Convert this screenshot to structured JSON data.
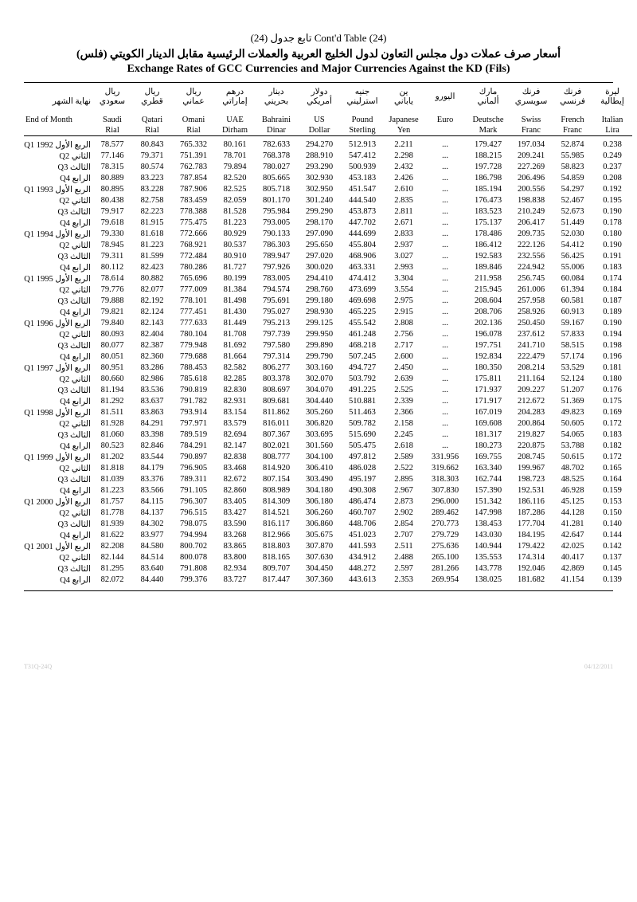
{
  "title": {
    "line1_ar": "تابع جدول (24)",
    "line1_en": "Cont'd Table (24)",
    "line2": "أسعار صرف عملات دول مجلس التعاون لدول الخليج العربية والعملات الرئيسية مقابل الدينار الكويتي (فلس)",
    "line3": "Exchange Rates of GCC Currencies and Major Currencies Against the KD (Fils)"
  },
  "headers": {
    "arabic": [
      "نهاية الشهر",
      "ريال سعودي",
      "ريال قطري",
      "ريال عماني",
      "درهم إماراتي",
      "دينار بحريني",
      "دولار أمريكي",
      "جنيه استرليني",
      "ين ياباني",
      "اليورو",
      "مارك ألماني",
      "فرنك سويسري",
      "فرنك فرنسي",
      "ليرة إيطالية"
    ],
    "en_top": [
      "End of Month",
      "Saudi",
      "Qatari",
      "Omani",
      "UAE",
      "Bahraini",
      "US",
      "Pound",
      "Japanese",
      "Euro",
      "Deutsche",
      "Swiss",
      "French",
      "Italian"
    ],
    "en_bot": [
      "",
      "Rial",
      "Rial",
      "Rial",
      "Dirham",
      "Dinar",
      "Dollar",
      "Sterling",
      "Yen",
      "",
      "Mark",
      "Franc",
      "Franc",
      "Lira"
    ]
  },
  "rows": [
    {
      "l": "الربع الأول Q1 1992",
      "v": [
        "78.577",
        "80.843",
        "765.332",
        "80.161",
        "782.633",
        "294.270",
        "512.913",
        "2.211",
        "...",
        "179.427",
        "197.034",
        "52.874",
        "0.238"
      ]
    },
    {
      "l": "الثاني Q2",
      "v": [
        "77.146",
        "79.371",
        "751.391",
        "78.701",
        "768.378",
        "288.910",
        "547.412",
        "2.298",
        "...",
        "188.215",
        "209.241",
        "55.985",
        "0.249"
      ]
    },
    {
      "l": "الثالث Q3",
      "v": [
        "78.315",
        "80.574",
        "762.783",
        "79.894",
        "780.027",
        "293.290",
        "500.939",
        "2.432",
        "...",
        "197.728",
        "227.269",
        "58.823",
        "0.237"
      ]
    },
    {
      "l": "الرابع Q4",
      "v": [
        "80.889",
        "83.223",
        "787.854",
        "82.520",
        "805.665",
        "302.930",
        "453.183",
        "2.426",
        "...",
        "186.798",
        "206.496",
        "54.859",
        "0.208"
      ]
    },
    {
      "l": "الربع الأول Q1 1993",
      "v": [
        "80.895",
        "83.228",
        "787.906",
        "82.525",
        "805.718",
        "302.950",
        "451.547",
        "2.610",
        "...",
        "185.194",
        "200.556",
        "54.297",
        "0.192"
      ]
    },
    {
      "l": "الثاني Q2",
      "v": [
        "80.438",
        "82.758",
        "783.459",
        "82.059",
        "801.170",
        "301.240",
        "444.540",
        "2.835",
        "...",
        "176.473",
        "198.838",
        "52.467",
        "0.195"
      ]
    },
    {
      "l": "الثالث Q3",
      "v": [
        "79.917",
        "82.223",
        "778.388",
        "81.528",
        "795.984",
        "299.290",
        "453.873",
        "2.811",
        "...",
        "183.523",
        "210.249",
        "52.673",
        "0.190"
      ]
    },
    {
      "l": "الرابع Q4",
      "v": [
        "79.618",
        "81.915",
        "775.475",
        "81.223",
        "793.005",
        "298.170",
        "447.702",
        "2.671",
        "...",
        "175.137",
        "206.417",
        "51.449",
        "0.178"
      ]
    },
    {
      "l": "الربع الأول Q1 1994",
      "v": [
        "79.330",
        "81.618",
        "772.666",
        "80.929",
        "790.133",
        "297.090",
        "444.699",
        "2.833",
        "...",
        "178.486",
        "209.735",
        "52.030",
        "0.180"
      ]
    },
    {
      "l": "الثاني Q2",
      "v": [
        "78.945",
        "81.223",
        "768.921",
        "80.537",
        "786.303",
        "295.650",
        "455.804",
        "2.937",
        "...",
        "186.412",
        "222.126",
        "54.412",
        "0.190"
      ]
    },
    {
      "l": "الثالث Q3",
      "v": [
        "79.311",
        "81.599",
        "772.484",
        "80.910",
        "789.947",
        "297.020",
        "468.906",
        "3.027",
        "...",
        "192.583",
        "232.556",
        "56.425",
        "0.191"
      ]
    },
    {
      "l": "الرابع Q4",
      "v": [
        "80.112",
        "82.423",
        "780.286",
        "81.727",
        "797.926",
        "300.020",
        "463.331",
        "2.993",
        "...",
        "189.846",
        "224.942",
        "55.006",
        "0.183"
      ]
    },
    {
      "l": "الربع الأول Q1 1995",
      "v": [
        "78.614",
        "80.882",
        "765.696",
        "80.199",
        "783.005",
        "294.410",
        "474.412",
        "3.304",
        "...",
        "211.958",
        "256.745",
        "60.084",
        "0.174"
      ]
    },
    {
      "l": "الثاني Q2",
      "v": [
        "79.776",
        "82.077",
        "777.009",
        "81.384",
        "794.574",
        "298.760",
        "473.699",
        "3.554",
        "...",
        "215.945",
        "261.006",
        "61.394",
        "0.184"
      ]
    },
    {
      "l": "الثالث Q3",
      "v": [
        "79.888",
        "82.192",
        "778.101",
        "81.498",
        "795.691",
        "299.180",
        "469.698",
        "2.975",
        "...",
        "208.604",
        "257.958",
        "60.581",
        "0.187"
      ]
    },
    {
      "l": "الرابع Q4",
      "v": [
        "79.821",
        "82.124",
        "777.451",
        "81.430",
        "795.027",
        "298.930",
        "465.225",
        "2.915",
        "...",
        "208.706",
        "258.926",
        "60.913",
        "0.189"
      ]
    },
    {
      "l": "الربع الأول Q1 1996",
      "v": [
        "79.840",
        "82.143",
        "777.633",
        "81.449",
        "795.213",
        "299.125",
        "455.542",
        "2.808",
        "...",
        "202.136",
        "250.450",
        "59.167",
        "0.190"
      ]
    },
    {
      "l": "الثاني Q2",
      "v": [
        "80.093",
        "82.404",
        "780.104",
        "81.708",
        "797.739",
        "299.950",
        "461.248",
        "2.756",
        "...",
        "196.078",
        "237.612",
        "57.833",
        "0.194"
      ]
    },
    {
      "l": "الثالث Q3",
      "v": [
        "80.077",
        "82.387",
        "779.948",
        "81.692",
        "797.580",
        "299.890",
        "468.218",
        "2.717",
        "...",
        "197.751",
        "241.710",
        "58.515",
        "0.198"
      ]
    },
    {
      "l": "الرابع Q4",
      "v": [
        "80.051",
        "82.360",
        "779.688",
        "81.664",
        "797.314",
        "299.790",
        "507.245",
        "2.600",
        "...",
        "192.834",
        "222.479",
        "57.174",
        "0.196"
      ]
    },
    {
      "l": "الربع الأول Q1 1997",
      "v": [
        "80.951",
        "83.286",
        "788.453",
        "82.582",
        "806.277",
        "303.160",
        "494.727",
        "2.450",
        "...",
        "180.350",
        "208.214",
        "53.529",
        "0.181"
      ]
    },
    {
      "l": "الثاني Q2",
      "v": [
        "80.660",
        "82.986",
        "785.618",
        "82.285",
        "803.378",
        "302.070",
        "503.792",
        "2.639",
        "...",
        "175.811",
        "211.164",
        "52.124",
        "0.180"
      ]
    },
    {
      "l": "الثالث Q3",
      "v": [
        "81.194",
        "83.536",
        "790.819",
        "82.830",
        "808.697",
        "304.070",
        "491.225",
        "2.525",
        "...",
        "171.937",
        "209.227",
        "51.207",
        "0.176"
      ]
    },
    {
      "l": "الرابع Q4",
      "v": [
        "81.292",
        "83.637",
        "791.782",
        "82.931",
        "809.681",
        "304.440",
        "510.881",
        "2.339",
        "...",
        "171.917",
        "212.672",
        "51.369",
        "0.175"
      ]
    },
    {
      "l": "الربع الأول Q1 1998",
      "v": [
        "81.511",
        "83.863",
        "793.914",
        "83.154",
        "811.862",
        "305.260",
        "511.463",
        "2.366",
        "...",
        "167.019",
        "204.283",
        "49.823",
        "0.169"
      ]
    },
    {
      "l": "الثاني Q2",
      "v": [
        "81.928",
        "84.291",
        "797.971",
        "83.579",
        "816.011",
        "306.820",
        "509.782",
        "2.158",
        "...",
        "169.608",
        "200.864",
        "50.605",
        "0.172"
      ]
    },
    {
      "l": "الثالث Q3",
      "v": [
        "81.060",
        "83.398",
        "789.519",
        "82.694",
        "807.367",
        "303.695",
        "515.690",
        "2.245",
        "...",
        "181.317",
        "219.827",
        "54.065",
        "0.183"
      ]
    },
    {
      "l": "الرابع Q4",
      "v": [
        "80.523",
        "82.846",
        "784.291",
        "82.147",
        "802.021",
        "301.560",
        "505.475",
        "2.618",
        "...",
        "180.273",
        "220.875",
        "53.788",
        "0.182"
      ]
    },
    {
      "l": "الربع الأول Q1 1999",
      "v": [
        "81.202",
        "83.544",
        "790.897",
        "82.838",
        "808.777",
        "304.100",
        "497.812",
        "2.589",
        "331.956",
        "169.755",
        "208.745",
        "50.615",
        "0.172"
      ]
    },
    {
      "l": "الثاني Q2",
      "v": [
        "81.818",
        "84.179",
        "796.905",
        "83.468",
        "814.920",
        "306.410",
        "486.028",
        "2.522",
        "319.662",
        "163.340",
        "199.967",
        "48.702",
        "0.165"
      ]
    },
    {
      "l": "الثالث Q3",
      "v": [
        "81.039",
        "83.376",
        "789.311",
        "82.672",
        "807.154",
        "303.490",
        "495.197",
        "2.895",
        "318.303",
        "162.744",
        "198.723",
        "48.525",
        "0.164"
      ]
    },
    {
      "l": "الرابع Q4",
      "v": [
        "81.223",
        "83.566",
        "791.105",
        "82.860",
        "808.989",
        "304.180",
        "490.308",
        "2.967",
        "307.830",
        "157.390",
        "192.531",
        "46.928",
        "0.159"
      ]
    },
    {
      "l": "الربع الأول Q1 2000",
      "v": [
        "81.757",
        "84.115",
        "796.307",
        "83.405",
        "814.309",
        "306.180",
        "486.474",
        "2.873",
        "296.000",
        "151.342",
        "186.116",
        "45.125",
        "0.153"
      ]
    },
    {
      "l": "الثاني Q2",
      "v": [
        "81.778",
        "84.137",
        "796.515",
        "83.427",
        "814.521",
        "306.260",
        "460.707",
        "2.902",
        "289.462",
        "147.998",
        "187.286",
        "44.128",
        "0.150"
      ]
    },
    {
      "l": "الثالث Q3",
      "v": [
        "81.939",
        "84.302",
        "798.075",
        "83.590",
        "816.117",
        "306.860",
        "448.706",
        "2.854",
        "270.773",
        "138.453",
        "177.704",
        "41.281",
        "0.140"
      ]
    },
    {
      "l": "الرابع Q4",
      "v": [
        "81.622",
        "83.977",
        "794.994",
        "83.268",
        "812.966",
        "305.675",
        "451.023",
        "2.707",
        "279.729",
        "143.030",
        "184.195",
        "42.647",
        "0.144"
      ]
    },
    {
      "l": "الربع الأول Q1 2001",
      "v": [
        "82.208",
        "84.580",
        "800.702",
        "83.865",
        "818.803",
        "307.870",
        "441.593",
        "2.511",
        "275.636",
        "140.944",
        "179.422",
        "42.025",
        "0.142"
      ]
    },
    {
      "l": "الثاني Q2",
      "v": [
        "82.144",
        "84.514",
        "800.078",
        "83.800",
        "818.165",
        "307.630",
        "434.912",
        "2.488",
        "265.100",
        "135.553",
        "174.314",
        "40.417",
        "0.137"
      ]
    },
    {
      "l": "الثالث Q3",
      "v": [
        "81.295",
        "83.640",
        "791.808",
        "82.934",
        "809.707",
        "304.450",
        "448.272",
        "2.597",
        "281.266",
        "143.778",
        "192.046",
        "42.869",
        "0.145"
      ]
    },
    {
      "l": "الرابع Q4",
      "v": [
        "82.072",
        "84.440",
        "799.376",
        "83.727",
        "817.447",
        "307.360",
        "443.613",
        "2.353",
        "269.954",
        "138.025",
        "181.682",
        "41.154",
        "0.139"
      ]
    }
  ],
  "footer": {
    "left": "T31Q-24Q",
    "right": "04/12/2011"
  },
  "style": {
    "columns": 14,
    "text_color": "#000000",
    "background": "#ffffff",
    "footer_color": "#c8c8c8",
    "body_font_size": 10.5,
    "title_font_size": 14
  }
}
